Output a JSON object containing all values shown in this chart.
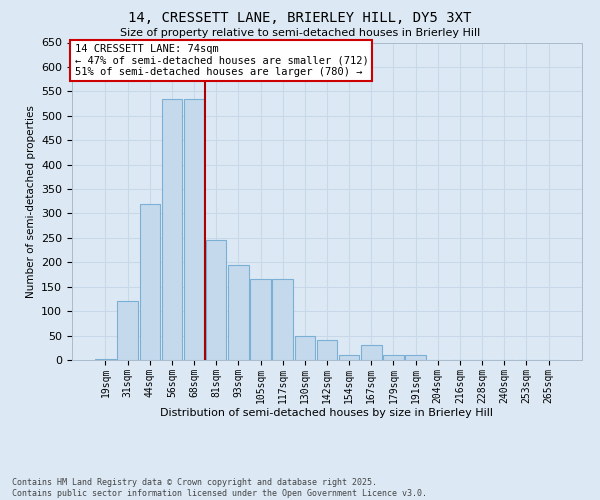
{
  "title": "14, CRESSETT LANE, BRIERLEY HILL, DY5 3XT",
  "subtitle": "Size of property relative to semi-detached houses in Brierley Hill",
  "xlabel": "Distribution of semi-detached houses by size in Brierley Hill",
  "ylabel": "Number of semi-detached properties",
  "bar_labels": [
    "19sqm",
    "31sqm",
    "44sqm",
    "56sqm",
    "68sqm",
    "81sqm",
    "93sqm",
    "105sqm",
    "117sqm",
    "130sqm",
    "142sqm",
    "154sqm",
    "167sqm",
    "179sqm",
    "191sqm",
    "204sqm",
    "216sqm",
    "228sqm",
    "240sqm",
    "253sqm",
    "265sqm"
  ],
  "bar_values": [
    2,
    120,
    320,
    535,
    535,
    245,
    195,
    165,
    165,
    50,
    40,
    10,
    30,
    10,
    10,
    0,
    0,
    0,
    0,
    0,
    0
  ],
  "bar_color": "#c5d9ed",
  "bar_edge_color": "#7bafd4",
  "vline_color": "#aa0000",
  "vline_x_index": 4.5,
  "annotation_title": "14 CRESSETT LANE: 74sqm",
  "annotation_line2": "← 47% of semi-detached houses are smaller (712)",
  "annotation_line3": "51% of semi-detached houses are larger (780) →",
  "annotation_box_edgecolor": "#cc0000",
  "footnote_line1": "Contains HM Land Registry data © Crown copyright and database right 2025.",
  "footnote_line2": "Contains public sector information licensed under the Open Government Licence v3.0.",
  "bg_color": "#dce9f5",
  "grid_color": "#c8d8e8",
  "ylim_max": 650,
  "ytick_step": 50,
  "fig_width": 6.0,
  "fig_height": 5.0,
  "dpi": 100
}
